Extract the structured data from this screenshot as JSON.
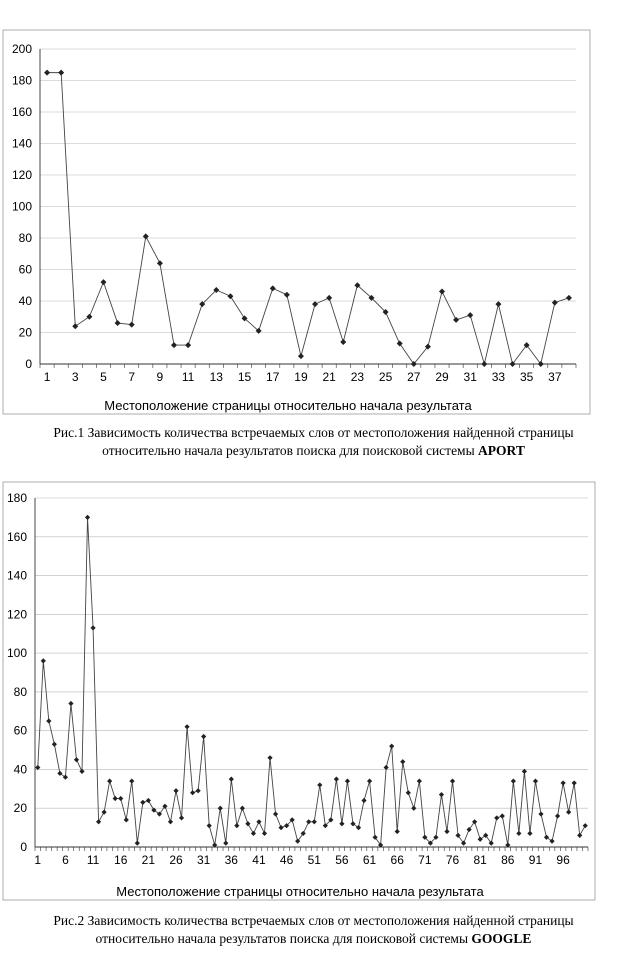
{
  "chart_data": [
    {
      "type": "line",
      "xlabel": "Местоположение страницы относительно начала результата",
      "ylim": [
        0,
        200
      ],
      "yticks": [
        0,
        20,
        40,
        60,
        80,
        100,
        120,
        140,
        160,
        180,
        200
      ],
      "xticks": [
        1,
        3,
        5,
        7,
        9,
        11,
        13,
        15,
        17,
        19,
        21,
        23,
        25,
        27,
        29,
        31,
        33,
        35,
        37
      ],
      "x": [
        1,
        2,
        3,
        4,
        5,
        6,
        7,
        8,
        9,
        10,
        11,
        12,
        13,
        14,
        15,
        16,
        17,
        18,
        19,
        20,
        21,
        22,
        23,
        24,
        25,
        26,
        27,
        28,
        29,
        30,
        31,
        32,
        33,
        34,
        35,
        36,
        37,
        38
      ],
      "values": [
        185,
        185,
        24,
        30,
        52,
        26,
        25,
        81,
        64,
        12,
        12,
        38,
        47,
        43,
        29,
        21,
        48,
        44,
        5,
        38,
        42,
        14,
        50,
        42,
        33,
        13,
        0,
        11,
        46,
        28,
        31,
        0,
        38,
        0,
        12,
        0,
        39,
        42
      ],
      "grid": "horizontal",
      "marker": "diamond"
    },
    {
      "type": "line",
      "xlabel": "Местоположение страницы относительно начала результата",
      "ylim": [
        0,
        180
      ],
      "yticks": [
        0,
        20,
        40,
        60,
        80,
        100,
        120,
        140,
        160,
        180
      ],
      "xticks": [
        1,
        6,
        11,
        16,
        21,
        26,
        31,
        36,
        41,
        46,
        51,
        56,
        61,
        66,
        71,
        76,
        81,
        86,
        91,
        96
      ],
      "x": [
        1,
        2,
        3,
        4,
        5,
        6,
        7,
        8,
        9,
        10,
        11,
        12,
        13,
        14,
        15,
        16,
        17,
        18,
        19,
        20,
        21,
        22,
        23,
        24,
        25,
        26,
        27,
        28,
        29,
        30,
        31,
        32,
        33,
        34,
        35,
        36,
        37,
        38,
        39,
        40,
        41,
        42,
        43,
        44,
        45,
        46,
        47,
        48,
        49,
        50,
        51,
        52,
        53,
        54,
        55,
        56,
        57,
        58,
        59,
        60,
        61,
        62,
        63,
        64,
        65,
        66,
        67,
        68,
        69,
        70,
        71,
        72,
        73,
        74,
        75,
        76,
        77,
        78,
        79,
        80,
        81,
        82,
        83,
        84,
        85,
        86,
        87,
        88,
        89,
        90,
        91,
        92,
        93,
        94,
        95,
        96,
        97,
        98,
        99,
        100
      ],
      "values": [
        41,
        96,
        65,
        53,
        38,
        36,
        74,
        45,
        39,
        170,
        113,
        13,
        18,
        34,
        25,
        25,
        14,
        34,
        2,
        23,
        24,
        19,
        17,
        21,
        13,
        29,
        15,
        62,
        28,
        29,
        57,
        11,
        1,
        20,
        2,
        35,
        11,
        20,
        12,
        7,
        13,
        7,
        46,
        17,
        10,
        11,
        14,
        3,
        7,
        13,
        13,
        32,
        11,
        14,
        35,
        12,
        34,
        12,
        10,
        24,
        34,
        5,
        1,
        41,
        52,
        8,
        44,
        28,
        20,
        34,
        5,
        2,
        5,
        27,
        8,
        34,
        6,
        2,
        9,
        13,
        4,
        6,
        2,
        15,
        16,
        1,
        34,
        7,
        39,
        7,
        34,
        17,
        5,
        3,
        16,
        33,
        18,
        33,
        6,
        11
      ],
      "grid": "horizontal",
      "marker": "diamond"
    }
  ],
  "captions": {
    "fig1_line1": "Рис.1 Зависимость количества встречаемых слов от местоположения найденной страницы",
    "fig1_line2": "относительно начала результатов поиска  для поисковой системы ",
    "fig1_system": "APORT",
    "fig2_line1": "Рис.2  Зависимость количества встречаемых слов от местоположения найденной страницы",
    "fig2_line2": "относительно начала результатов поиска  для поисковой системы ",
    "fig2_system": "GOOGLE"
  }
}
